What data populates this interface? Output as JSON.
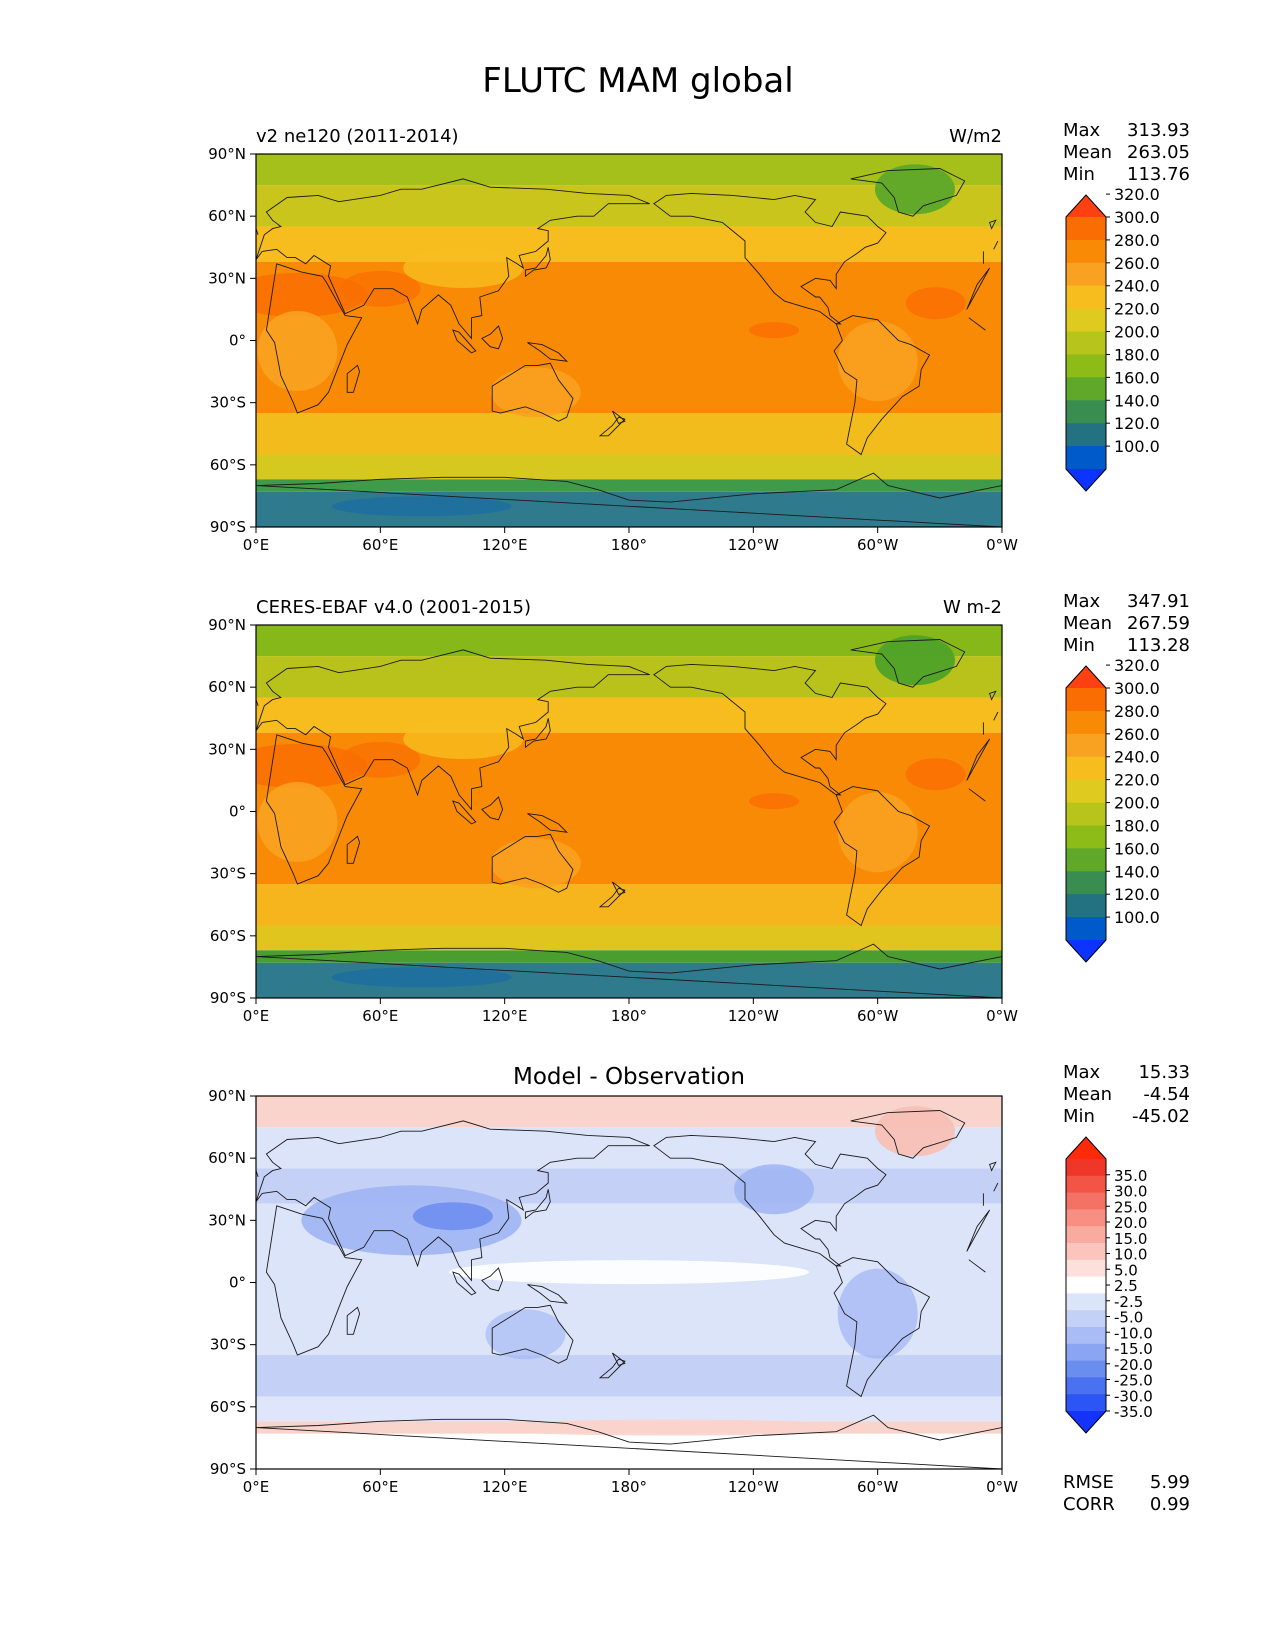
{
  "figure": {
    "title": "FLUTC MAM global"
  },
  "axes": {
    "lat_ticks": [
      "90°N",
      "60°N",
      "30°N",
      "0°",
      "30°S",
      "60°S",
      "90°S"
    ],
    "lon_ticks": [
      "0°E",
      "60°E",
      "120°E",
      "180°",
      "120°W",
      "60°W",
      "0°W"
    ]
  },
  "panels": [
    {
      "id": "model",
      "left_title": "v2 ne120 (2011-2014)",
      "center_title": "",
      "units": "W/m2",
      "stats": [
        {
          "label": "Max",
          "value": "313.93"
        },
        {
          "label": "Mean",
          "value": "263.05"
        },
        {
          "label": "Min",
          "value": "113.76"
        }
      ],
      "colorbar": {
        "colors": [
          "#0c33ff",
          "#005ac9",
          "#237282",
          "#3a8d50",
          "#60a82a",
          "#8dbc18",
          "#b6c41b",
          "#dfcb1f",
          "#f7bd1e",
          "#f9a222",
          "#f98a05",
          "#fa6d02",
          "#ff4010"
        ],
        "labels": [
          "100.0",
          "120.0",
          "140.0",
          "160.0",
          "180.0",
          "200.0",
          "220.0",
          "240.0",
          "260.0",
          "280.0",
          "300.0",
          "320.0"
        ]
      },
      "map_palette": {
        "antarctic_deep": "#1f6fa0",
        "antarctic": "#2f7a8c",
        "antarctic_coast": "#3f9a4a",
        "south_midlat": "#d7c820",
        "south_sub": "#f2bd1c",
        "tropics": "#f98a05",
        "tropics_hot": "#fa6d02",
        "north_sub": "#f7bd1e",
        "north_midlat": "#c9c51c",
        "arctic": "#a6c01b",
        "greenland": "#5ea82a",
        "land_warm": "#f9a222"
      }
    },
    {
      "id": "obs",
      "left_title": "CERES-EBAF v4.0 (2001-2015)",
      "center_title": "",
      "units": "W m-2",
      "stats": [
        {
          "label": "Max",
          "value": "347.91"
        },
        {
          "label": "Mean",
          "value": "267.59"
        },
        {
          "label": "Min",
          "value": "113.28"
        }
      ],
      "colorbar": {
        "colors": [
          "#0c33ff",
          "#005ac9",
          "#237282",
          "#3a8d50",
          "#60a82a",
          "#8dbc18",
          "#b6c41b",
          "#dfcb1f",
          "#f7bd1e",
          "#f9a222",
          "#f98a05",
          "#fa6d02",
          "#ff4010"
        ],
        "labels": [
          "100.0",
          "120.0",
          "140.0",
          "160.0",
          "180.0",
          "200.0",
          "220.0",
          "240.0",
          "260.0",
          "280.0",
          "300.0",
          "320.0"
        ]
      },
      "map_palette": {
        "antarctic_deep": "#1f6fa0",
        "antarctic": "#2f7a8c",
        "antarctic_coast": "#4a9e30",
        "south_midlat": "#e0c51e",
        "south_sub": "#f6b51d",
        "tropics": "#f98a05",
        "tropics_hot": "#fa6d02",
        "north_sub": "#f7bd1e",
        "north_midlat": "#b9c21b",
        "arctic": "#86b819",
        "greenland": "#4ea228",
        "land_warm": "#f9a222"
      }
    },
    {
      "id": "diff",
      "left_title": "",
      "center_title": "Model - Observation",
      "units": "",
      "stats": [
        {
          "label": "Max",
          "value": "15.33"
        },
        {
          "label": "Mean",
          "value": "-4.54"
        },
        {
          "label": "Min",
          "value": "-45.02"
        }
      ],
      "metrics": [
        {
          "label": "RMSE",
          "value": "5.99"
        },
        {
          "label": "CORR",
          "value": "0.99"
        }
      ],
      "colorbar": {
        "colors": [
          "#1433ff",
          "#2d55f5",
          "#4a72f0",
          "#6a8ef0",
          "#8aa6f2",
          "#a9bdf4",
          "#c4d0f6",
          "#dce4fa",
          "#ffffff",
          "#fde0dc",
          "#fbc5bd",
          "#f9aba0",
          "#f78f82",
          "#f47263",
          "#f25545",
          "#ef3628",
          "#ff2a0a"
        ],
        "labels": [
          "-35.0",
          "-30.0",
          "-25.0",
          "-20.0",
          "-15.0",
          "-10.0",
          "-5.0",
          "-2.5",
          "2.5",
          "5.0",
          "10.0",
          "15.0",
          "20.0",
          "25.0",
          "30.0",
          "35.0"
        ]
      },
      "map_palette": {
        "antarctic": "#ffffff",
        "antarctic_coast": "#f9d4cc",
        "south_midlat": "#dfe6fb",
        "south_sub": "#c4d0f6",
        "tropics": "#dce4fa",
        "tropics_hot": "#ffffff",
        "north_sub": "#c4d0f6",
        "north_midlat": "#dce4fa",
        "arctic": "#f9d4cc",
        "greenland": "#f7c0b6",
        "land_warm": "#9fb4f3"
      }
    }
  ]
}
